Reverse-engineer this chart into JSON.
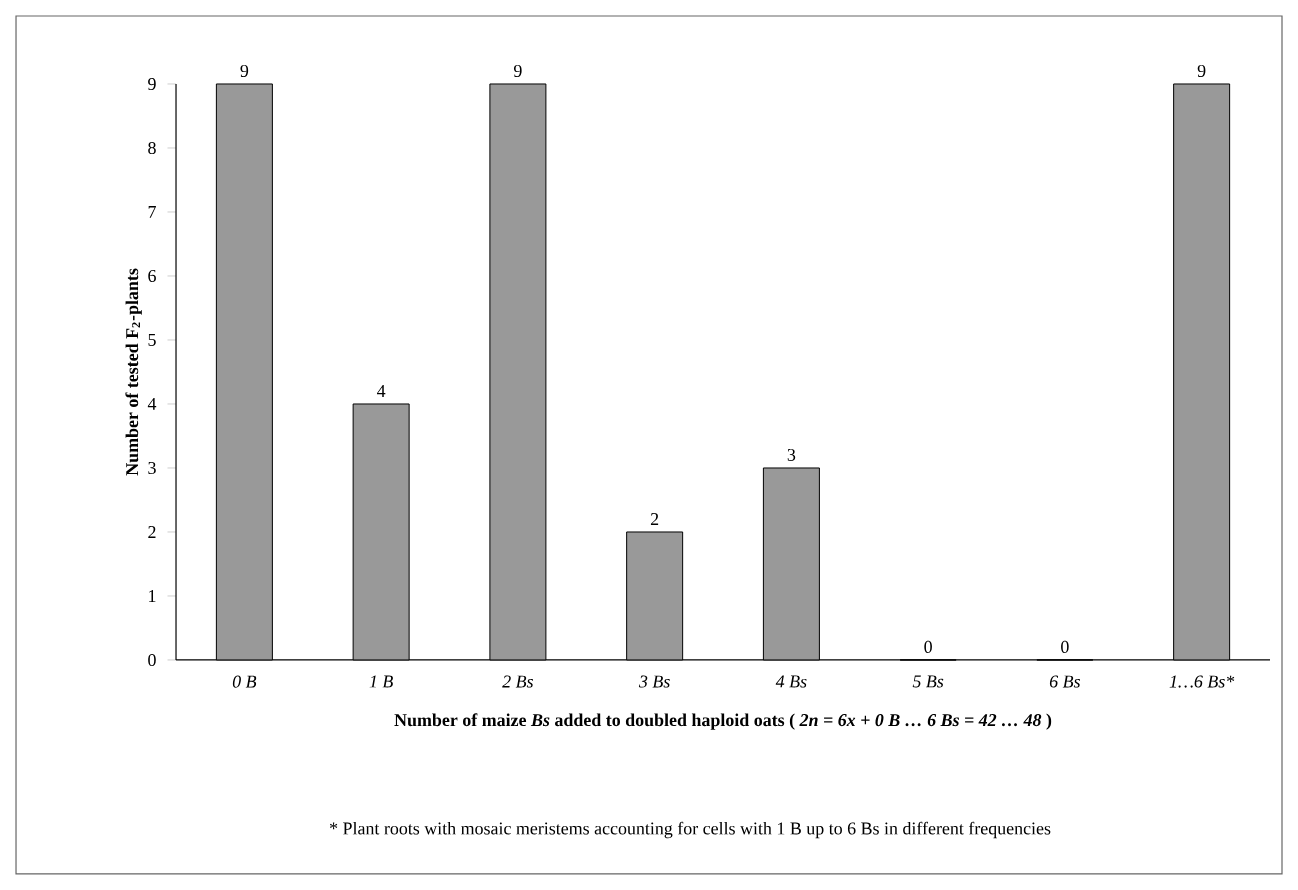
{
  "chart_data": {
    "type": "bar",
    "categories": [
      "0 B",
      "1 B",
      "2 Bs",
      "3 Bs",
      "4 Bs",
      "5 Bs",
      "6 Bs",
      "1…6 Bs*"
    ],
    "values": [
      9,
      4,
      9,
      2,
      3,
      0,
      0,
      9
    ],
    "color": "#999999",
    "ylabel": "Number of tested F$_{2}$-plants",
    "xlabel": "Number of maize *Bs* added to doubled haploid oats ( *2n = 6x + 0 B … 6 Bs = 42 … 48* )",
    "annotations": [
      "* Plant roots with mosaic meristems accounting for cells with 1 B up to 6 Bs in different frequencies"
    ],
    "ylim": [
      0,
      9
    ],
    "yticks": [
      0,
      1,
      2,
      3,
      4,
      5,
      6,
      7,
      8,
      9
    ],
    "data_labels": true,
    "grid": false
  }
}
